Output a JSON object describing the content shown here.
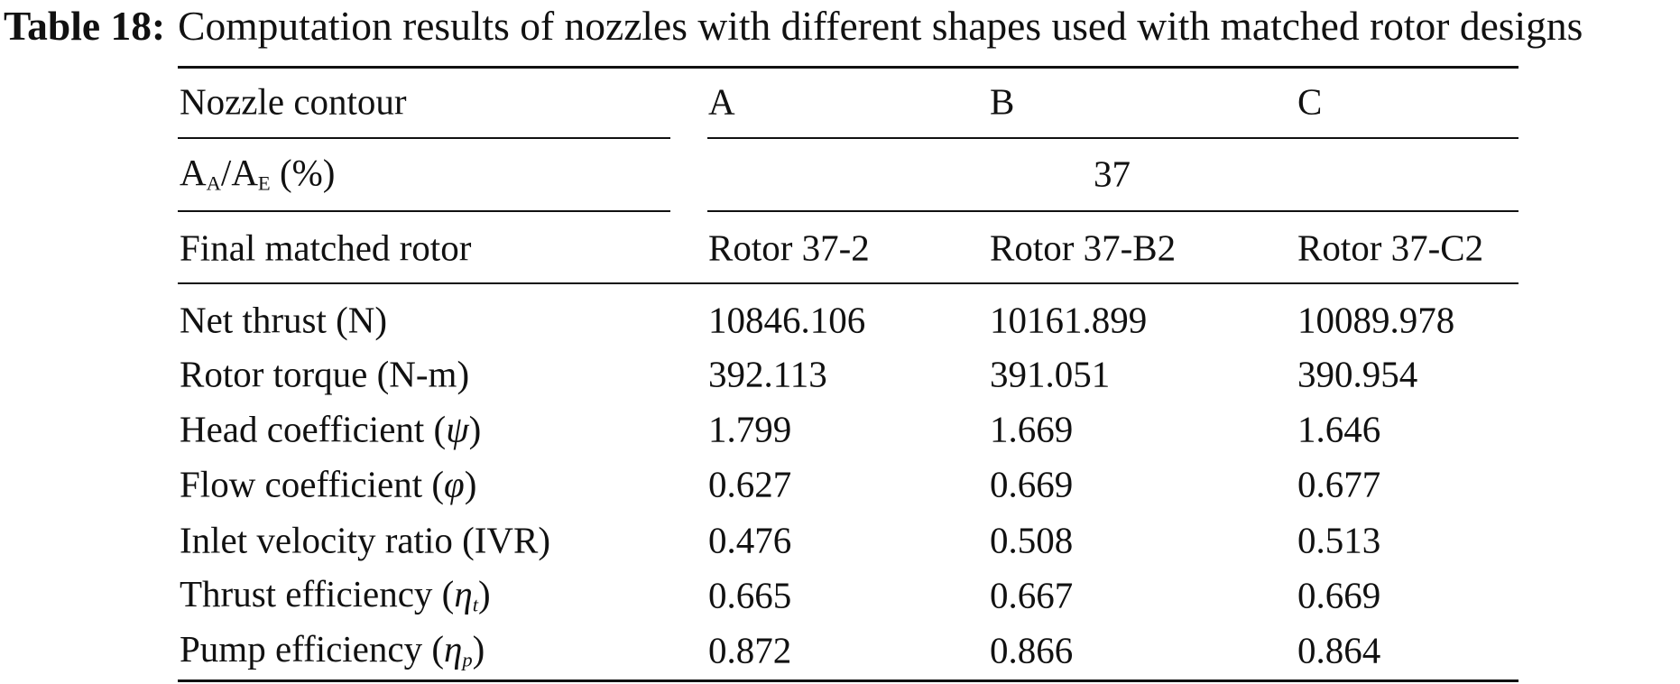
{
  "caption": {
    "label": "Table 18:",
    "text": "Computation results of nozzles with different shapes used with matched rotor designs"
  },
  "header": {
    "nozzle_label": "Nozzle contour",
    "contours": [
      "A",
      "B",
      "C"
    ],
    "area_ratio_label": {
      "a": "A",
      "sub_a": "A",
      "slash": "/",
      "e": "A",
      "sub_e": "E",
      "unit": " (%)"
    },
    "area_ratio_value": "37",
    "rotor_label": "Final matched rotor",
    "rotors": [
      "Rotor 37-2",
      "Rotor 37-B2",
      "Rotor 37-C2"
    ]
  },
  "rows": [
    {
      "label": "Net thrust (N)",
      "values": [
        "10846.106",
        "10161.899",
        "10089.978"
      ]
    },
    {
      "label": "Rotor torque (N-m)",
      "values": [
        "392.113",
        "391.051",
        "390.954"
      ]
    },
    {
      "label": "Head coefficient (",
      "sym": "ψ",
      "sub": "",
      "close": ")",
      "values": [
        "1.799",
        "1.669",
        "1.646"
      ]
    },
    {
      "label": "Flow coefficient (",
      "sym": "φ",
      "sub": "",
      "close": ")",
      "values": [
        "0.627",
        "0.669",
        "0.677"
      ]
    },
    {
      "label": "Inlet velocity ratio (IVR)",
      "values": [
        "0.476",
        "0.508",
        "0.513"
      ]
    },
    {
      "label": "Thrust efficiency (",
      "sym": "η",
      "sub": "t",
      "close": ")",
      "values": [
        "0.665",
        "0.667",
        "0.669"
      ]
    },
    {
      "label": "Pump efficiency (",
      "sym": "η",
      "sub": "p",
      "close": ")",
      "values": [
        "0.872",
        "0.866",
        "0.864"
      ]
    }
  ]
}
